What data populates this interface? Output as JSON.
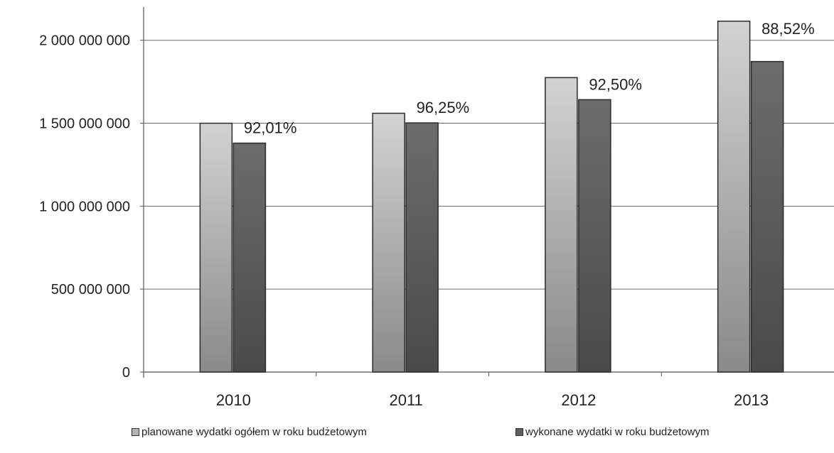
{
  "chart_data": {
    "type": "bar",
    "title": "",
    "xlabel": "",
    "ylabel": "",
    "categories": [
      "2010",
      "2011",
      "2012",
      "2013"
    ],
    "series": [
      {
        "name": "planowane wydatki ogółem w roku budżetowym",
        "values": [
          1500000000,
          1560000000,
          1775000000,
          2115000000
        ],
        "color": "#b4b4b4"
      },
      {
        "name": "wykonane wydatki w roku budżetowym",
        "values": [
          1380000000,
          1502000000,
          1642000000,
          1872000000
        ],
        "color": "#5e5e5e"
      }
    ],
    "data_labels": [
      "92,01%",
      "96,25%",
      "92,50%",
      "88,52%"
    ],
    "yticks": [
      0,
      500000000,
      1000000000,
      1500000000,
      2000000000
    ],
    "ytick_labels": [
      "0",
      "500 000 000",
      "1 000 000 000",
      "1 500 000 000",
      "2 000 000 000"
    ],
    "ylim": [
      0,
      2200000000
    ],
    "grid": true,
    "legend_position": "bottom"
  }
}
